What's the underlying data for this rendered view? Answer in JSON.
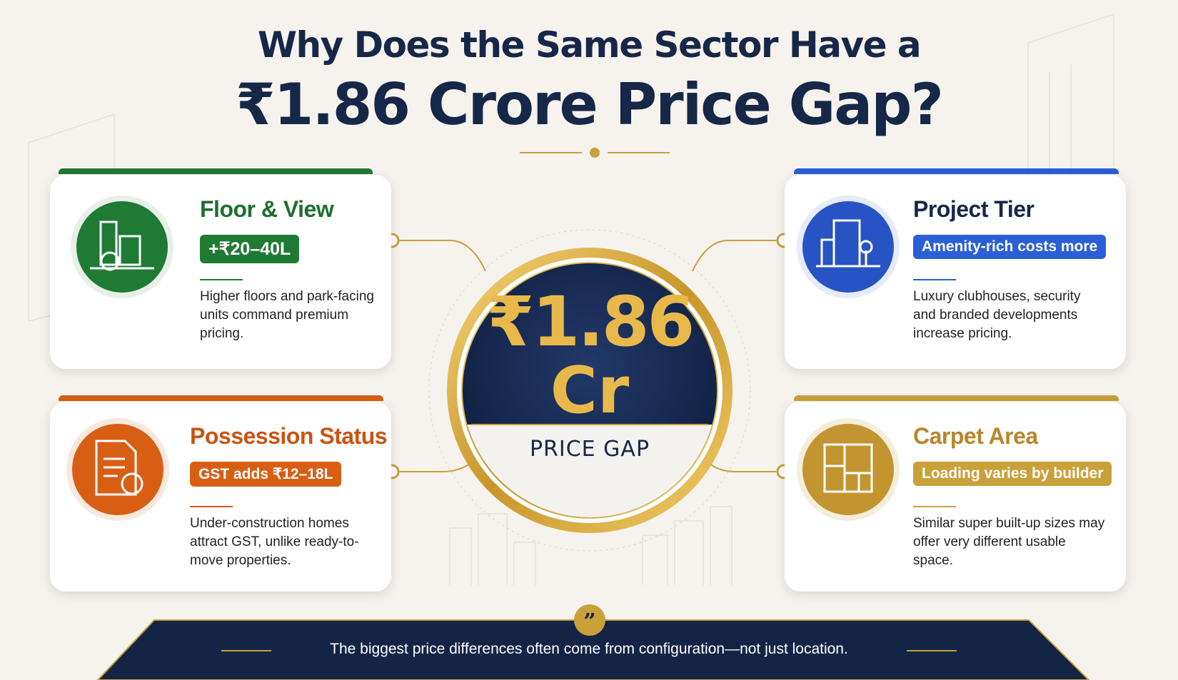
{
  "header": {
    "title_line1": "Why Does the Same Sector Have a",
    "title_line2": "₹1.86 Crore Price Gap?"
  },
  "center": {
    "amount": "₹1.86",
    "unit": "Cr",
    "label": "PRICE GAP"
  },
  "cards": [
    {
      "title": "Floor & View",
      "tag": "+₹20–40L",
      "description": "Higher floors and park-facing units command premium pricing."
    },
    {
      "title": "Project Tier",
      "tag": "Amenity-rich costs more",
      "description": "Luxury clubhouses, security and branded developments increase pricing."
    },
    {
      "title": "Possession Status",
      "tag": "GST adds ₹12–18L",
      "description": "Under-construction homes attract GST, unlike ready-to-move properties."
    },
    {
      "title": "Carpet Area",
      "tag": "Loading varies by builder",
      "description": "Similar super built-up sizes may offer very different usable space."
    }
  ],
  "footer": {
    "quote": "The biggest price differences often come from configuration—not just location."
  }
}
